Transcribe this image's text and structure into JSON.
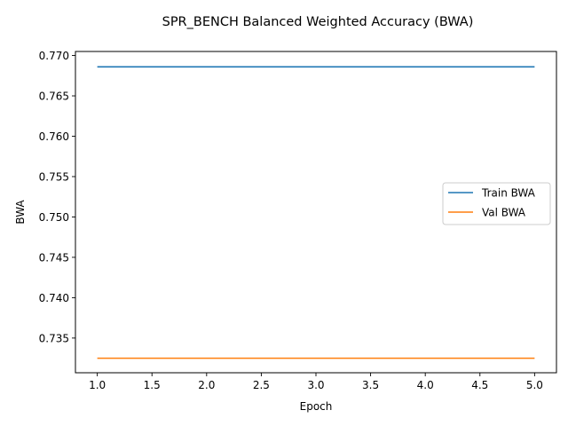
{
  "chart_data": {
    "type": "line",
    "title": "SPR_BENCH Balanced Weighted Accuracy (BWA)",
    "xlabel": "Epoch",
    "ylabel": "BWA",
    "x": [
      1,
      2,
      3,
      4,
      5
    ],
    "xlim": [
      0.8,
      5.2
    ],
    "ylim": [
      0.7307,
      0.7705
    ],
    "xticks": [
      1.0,
      1.5,
      2.0,
      2.5,
      3.0,
      3.5,
      4.0,
      4.5,
      5.0
    ],
    "xtick_labels": [
      "1.0",
      "1.5",
      "2.0",
      "2.5",
      "3.0",
      "3.5",
      "4.0",
      "4.5",
      "5.0"
    ],
    "yticks": [
      0.735,
      0.74,
      0.745,
      0.75,
      0.755,
      0.76,
      0.765,
      0.77
    ],
    "ytick_labels": [
      "0.735",
      "0.740",
      "0.745",
      "0.750",
      "0.755",
      "0.760",
      "0.765",
      "0.770"
    ],
    "grid": false,
    "legend_position": "center-right",
    "series": [
      {
        "name": "Train BWA",
        "color": "#1f77b4",
        "values": [
          0.7686,
          0.7686,
          0.7686,
          0.7686,
          0.7686
        ]
      },
      {
        "name": "Val BWA",
        "color": "#ff7f0e",
        "values": [
          0.7325,
          0.7325,
          0.7325,
          0.7325,
          0.7325
        ]
      }
    ]
  }
}
